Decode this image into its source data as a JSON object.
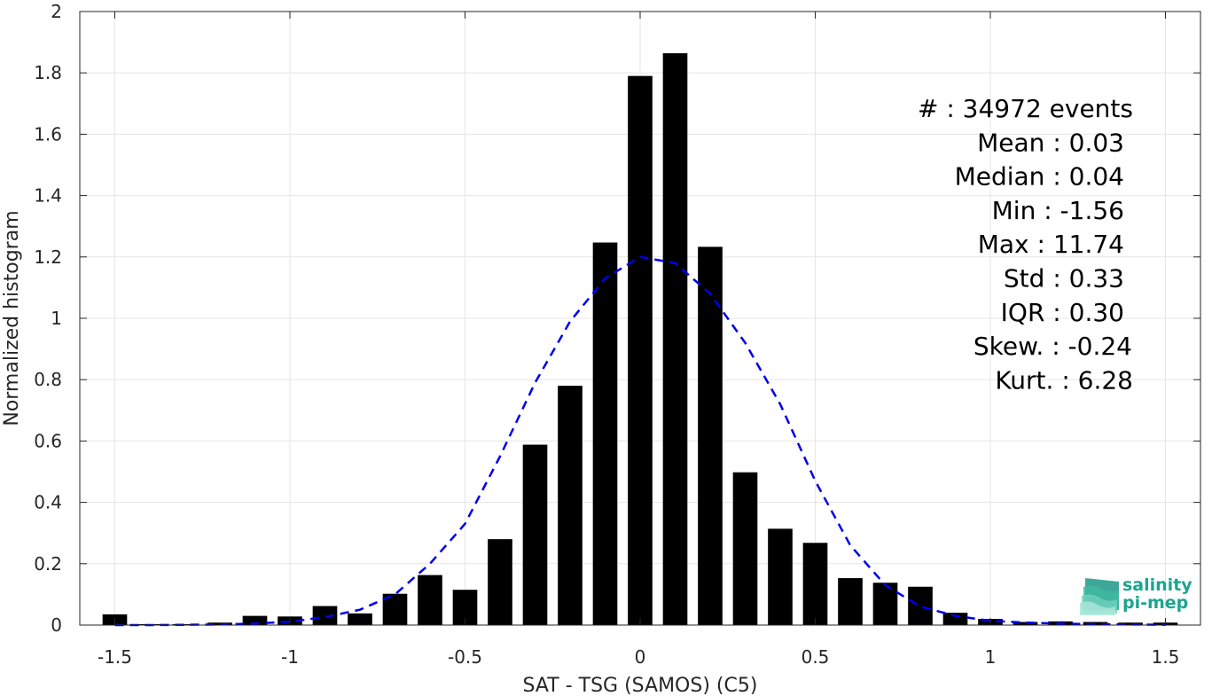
{
  "chart_data": {
    "type": "bar",
    "xlabel": "SAT - TSG (SAMOS) (C5)",
    "ylabel": "Normalized histogram",
    "xlim": [
      -1.6,
      1.6
    ],
    "ylim": [
      0,
      2
    ],
    "grid": true,
    "xticks": [
      -1.5,
      -1,
      -0.5,
      0,
      0.5,
      1,
      1.5
    ],
    "xtick_labels": [
      "-1.5",
      "-1",
      "-0.5",
      "0",
      "0.5",
      "1",
      "1.5"
    ],
    "yticks": [
      0,
      0.2,
      0.4,
      0.6,
      0.8,
      1,
      1.2,
      1.4,
      1.6,
      1.8,
      2
    ],
    "ytick_labels": [
      "0",
      "0.2",
      "0.4",
      "0.6",
      "0.8",
      "1",
      "1.2",
      "1.4",
      "1.6",
      "1.8",
      "2"
    ],
    "bar_color": "#000000",
    "bars": {
      "x": [
        -1.5,
        -1.4,
        -1.3,
        -1.2,
        -1.1,
        -1.0,
        -0.9,
        -0.8,
        -0.7,
        -0.6,
        -0.5,
        -0.4,
        -0.3,
        -0.2,
        -0.1,
        0.0,
        0.1,
        0.2,
        0.3,
        0.4,
        0.5,
        0.6,
        0.7,
        0.8,
        0.9,
        1.0,
        1.1,
        1.2,
        1.3,
        1.4,
        1.5
      ],
      "values": [
        0.035,
        0.003,
        0.003,
        0.008,
        0.03,
        0.028,
        0.062,
        0.038,
        0.102,
        0.163,
        0.115,
        0.28,
        0.588,
        0.78,
        1.247,
        1.79,
        1.864,
        1.233,
        0.498,
        0.314,
        0.268,
        0.153,
        0.138,
        0.125,
        0.04,
        0.02,
        0.01,
        0.012,
        0.01,
        0.008,
        0.008
      ]
    },
    "fit_curve": {
      "color": "#0000ee",
      "style": "dashed",
      "x": [
        -1.5,
        -1.4,
        -1.3,
        -1.2,
        -1.1,
        -1.0,
        -0.9,
        -0.8,
        -0.7,
        -0.6,
        -0.5,
        -0.4,
        -0.3,
        -0.2,
        -0.1,
        0.0,
        0.1,
        0.2,
        0.3,
        0.4,
        0.5,
        0.6,
        0.7,
        0.8,
        0.9,
        1.0,
        1.1,
        1.2,
        1.3,
        1.4,
        1.5
      ],
      "y": [
        0.0,
        0.0,
        0.001,
        0.002,
        0.005,
        0.011,
        0.026,
        0.05,
        0.1,
        0.2,
        0.33,
        0.55,
        0.79,
        0.99,
        1.13,
        1.2,
        1.18,
        1.08,
        0.92,
        0.72,
        0.47,
        0.26,
        0.13,
        0.06,
        0.03,
        0.014,
        0.008,
        0.005,
        0.003,
        0.002,
        0.001
      ]
    },
    "annotations": [
      "#  : 34972 events",
      "Mean : 0.03",
      "Median : 0.04",
      "Min : -1.56",
      "Max : 11.74",
      "Std : 0.33",
      "IQR : 0.30",
      "Skew. : -0.24",
      "Kurt. : 6.28"
    ]
  },
  "logo": {
    "line1": "salinity",
    "line2": "pi-mep",
    "color": "#1aa58f"
  }
}
